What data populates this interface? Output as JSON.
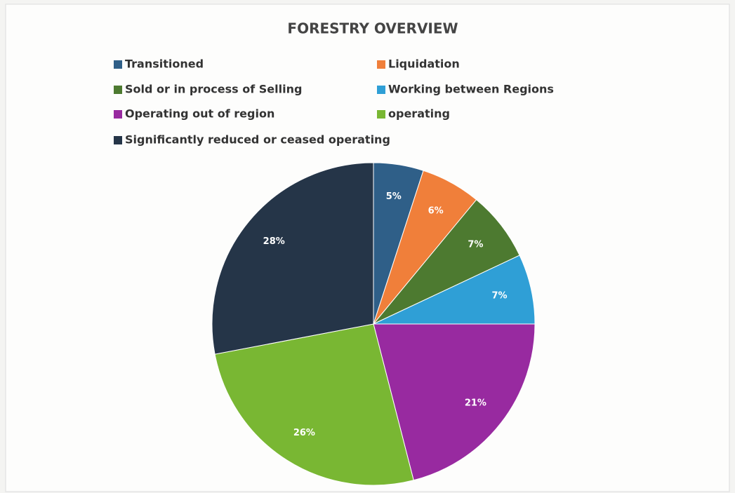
{
  "chart_data": {
    "type": "pie",
    "title": "FORESTRY OVERVIEW",
    "categories": [
      "Transitioned",
      "Liquidation",
      "Sold or in process of Selling",
      "Working between Regions",
      "Operating out of region",
      "operating",
      "Significantly reduced or ceased operating"
    ],
    "values": [
      5,
      6,
      7,
      7,
      21,
      26,
      28
    ],
    "value_labels": [
      "5%",
      "6%",
      "7%",
      "7%",
      "21%",
      "26%",
      "28%"
    ],
    "colors": [
      "#2f5f88",
      "#f07f3a",
      "#4d7a30",
      "#2f9fd6",
      "#982aa0",
      "#79b733",
      "#253548"
    ],
    "legend": "top"
  }
}
